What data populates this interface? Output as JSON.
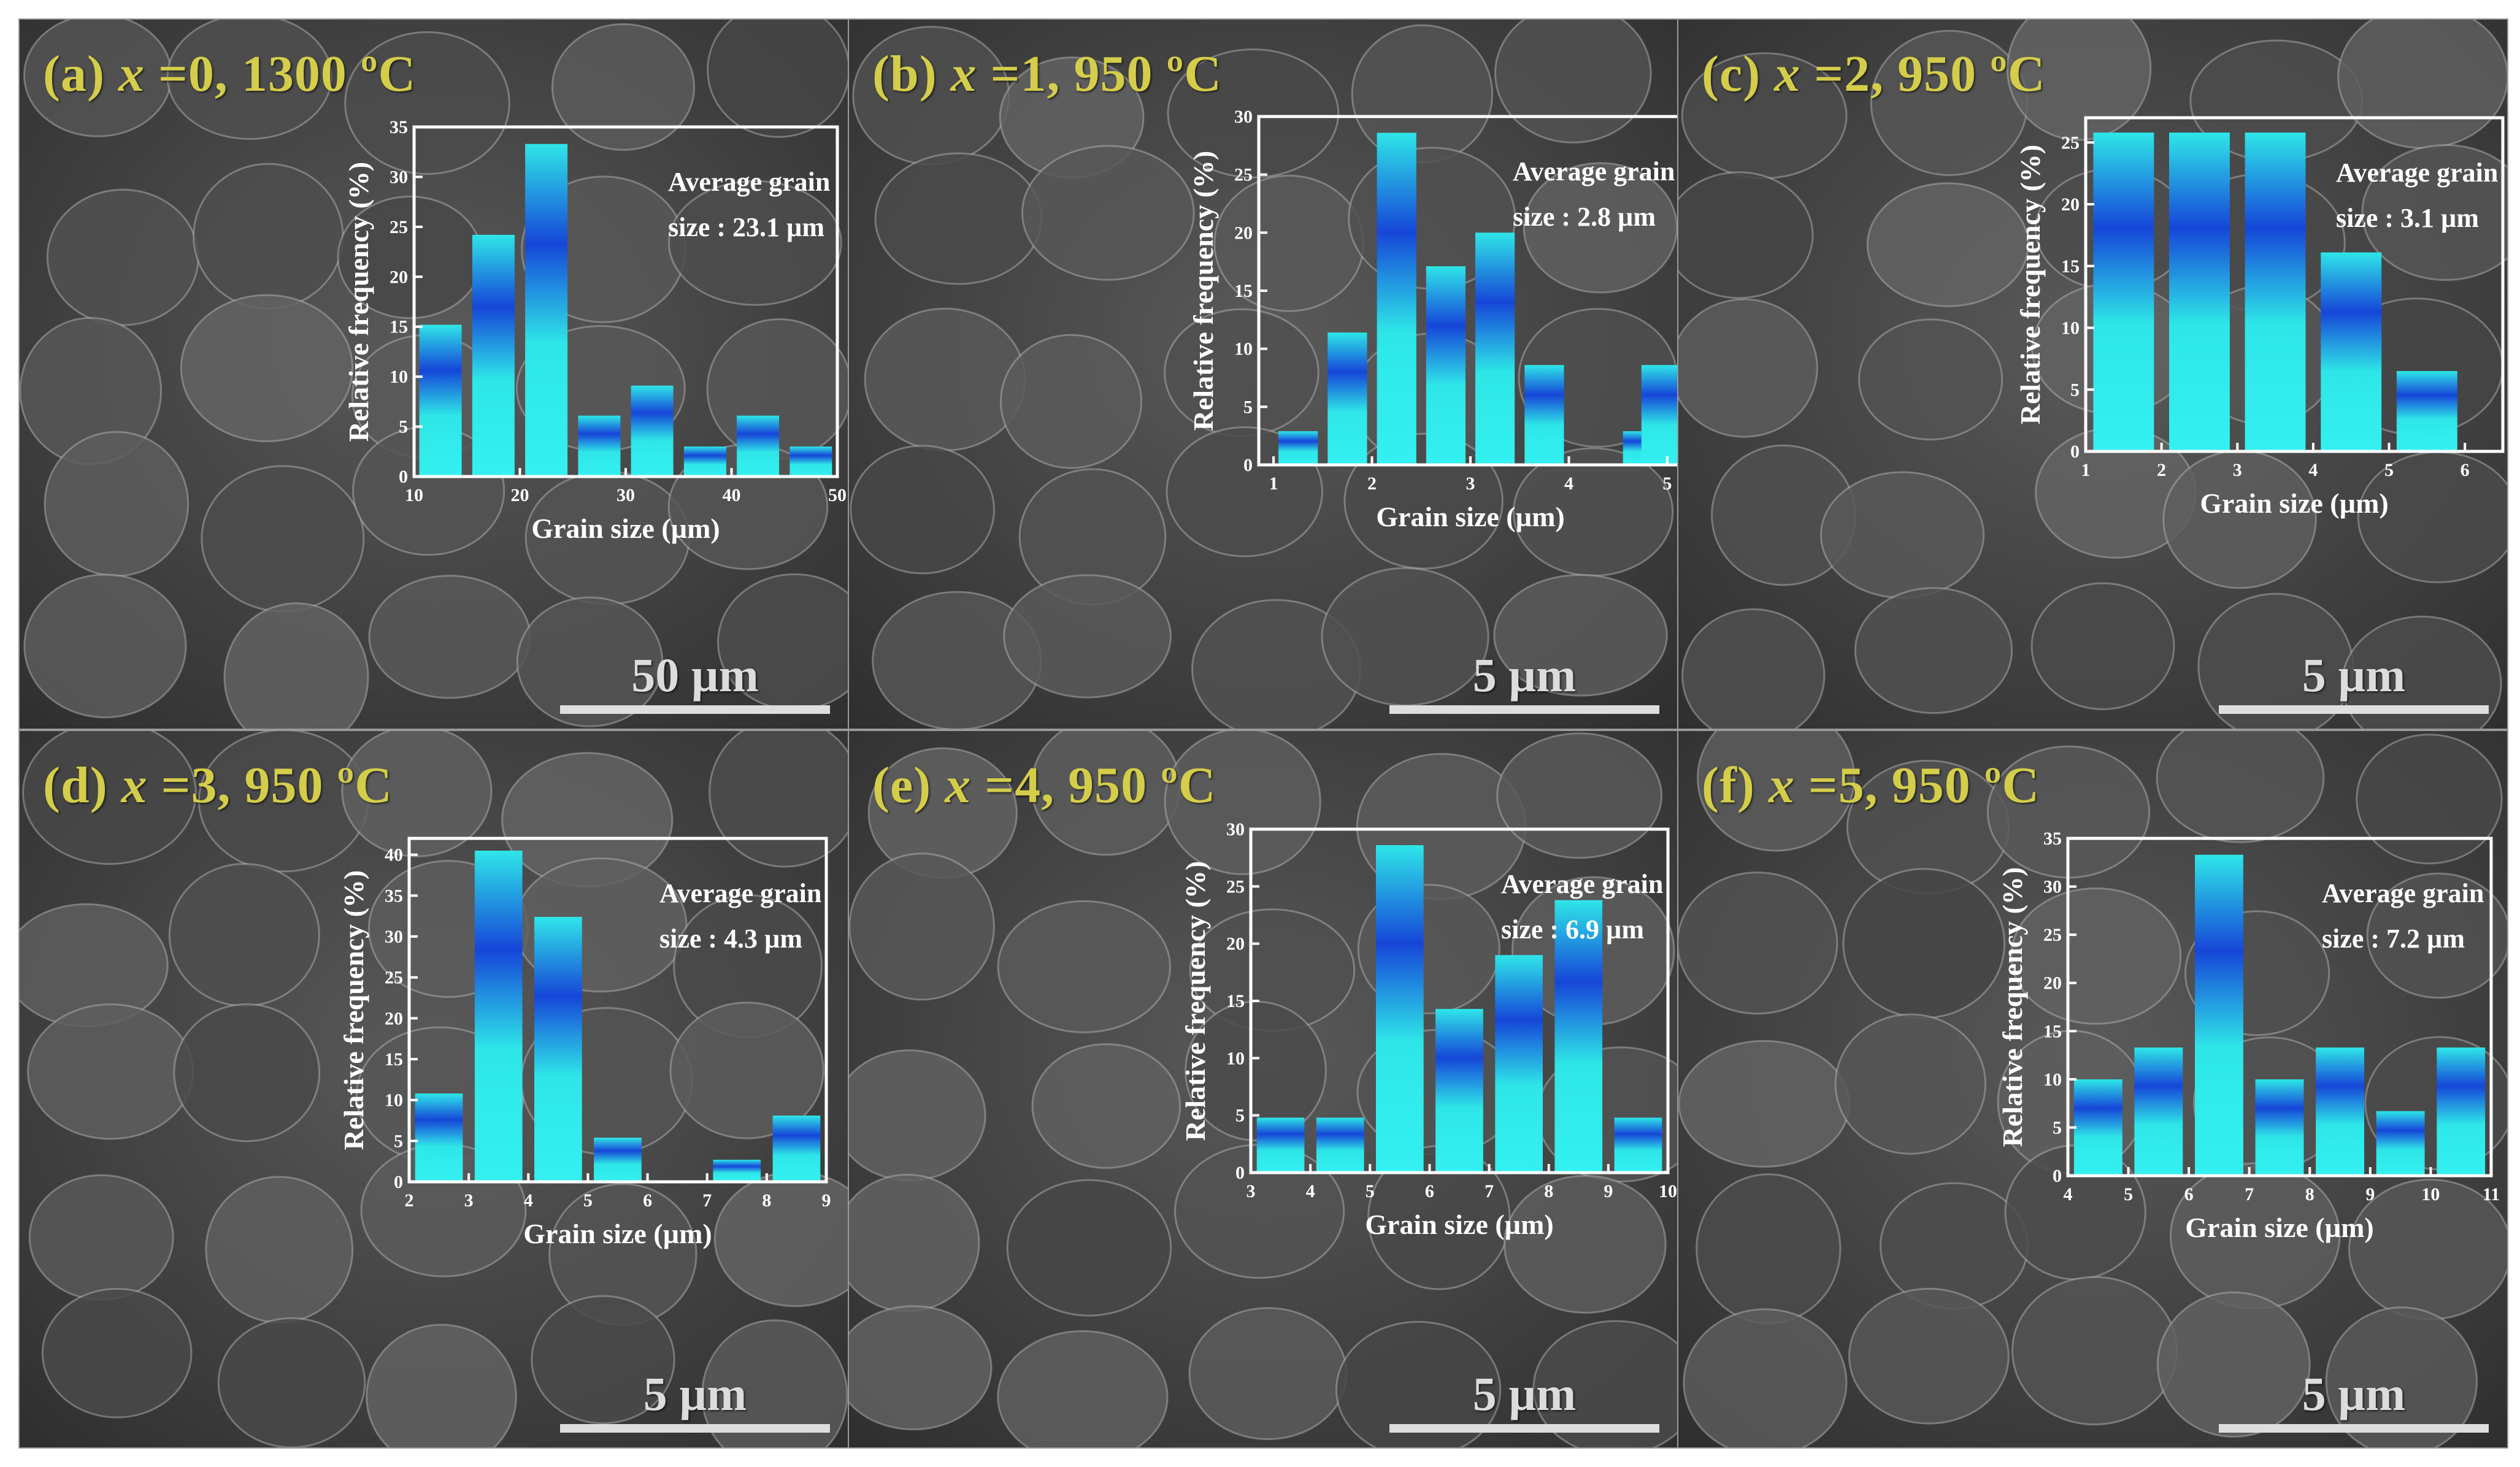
{
  "colors": {
    "label": "#d4cd4a",
    "scale": "#dedede",
    "sem_base": "#4a4a4a",
    "bar_light": "#2ee6e8",
    "bar_dark": "#1646d8",
    "axis": "#ffffff"
  },
  "chart_data": [
    {
      "id": "a",
      "type": "bar",
      "panel_label": {
        "prefix": "(a) ",
        "var": "x",
        "rest": " =0, 1300 ºC"
      },
      "scale_bar": "50 µm",
      "title": "",
      "xlabel": "Grain size (µm)",
      "ylabel": "Relative frequency (%)",
      "annotation": [
        "Average grain",
        "size : 23.1 µm"
      ],
      "xlim": [
        10,
        50
      ],
      "ylim": [
        0,
        35
      ],
      "xticks": [
        10,
        20,
        30,
        40,
        50
      ],
      "yticks": [
        0,
        5,
        10,
        15,
        20,
        25,
        30,
        35
      ],
      "bars": [
        {
          "x": 12.5,
          "value": 15.2
        },
        {
          "x": 17.5,
          "value": 24.2
        },
        {
          "x": 22.5,
          "value": 33.3
        },
        {
          "x": 27.5,
          "value": 6.1
        },
        {
          "x": 32.5,
          "value": 9.1
        },
        {
          "x": 37.5,
          "value": 3.0
        },
        {
          "x": 42.5,
          "value": 6.1
        },
        {
          "x": 47.5,
          "value": 3.0
        }
      ]
    },
    {
      "id": "b",
      "type": "bar",
      "panel_label": {
        "prefix": "(b) ",
        "var": "x",
        "rest": " =1, 950 ºC"
      },
      "scale_bar": "5 µm",
      "title": "",
      "xlabel": "Grain size (µm)",
      "ylabel": "Relative frequency (%)",
      "annotation": [
        "Average grain",
        "size : 2.8 µm"
      ],
      "xlim": [
        0.85,
        5.15
      ],
      "ylim": [
        0,
        30
      ],
      "xticks": [
        1,
        2,
        3,
        4,
        5
      ],
      "yticks": [
        0,
        5,
        10,
        15,
        20,
        25,
        30
      ],
      "bars": [
        {
          "x": 1.25,
          "value": 2.9
        },
        {
          "x": 1.75,
          "value": 11.4
        },
        {
          "x": 2.25,
          "value": 28.6
        },
        {
          "x": 2.75,
          "value": 17.1
        },
        {
          "x": 3.25,
          "value": 20.0
        },
        {
          "x": 3.75,
          "value": 8.6
        },
        {
          "x": 4.75,
          "value": 2.9
        },
        {
          "x": 5.1,
          "value": 8.6
        }
      ]
    },
    {
      "id": "c",
      "type": "bar",
      "panel_label": {
        "prefix": "(c) ",
        "var": "x",
        "rest": " =2, 950 ºC"
      },
      "scale_bar": "5 µm",
      "title": "",
      "xlabel": "Grain size (µm)",
      "ylabel": "Relative frequency (%)",
      "annotation": [
        "Average grain",
        "size : 3.1 µm"
      ],
      "xlim": [
        1,
        6.5
      ],
      "ylim": [
        0,
        27
      ],
      "xticks": [
        1,
        2,
        3,
        4,
        5,
        6
      ],
      "yticks": [
        0,
        5,
        10,
        15,
        20,
        25
      ],
      "bars": [
        {
          "x": 1.5,
          "value": 25.8
        },
        {
          "x": 2.5,
          "value": 25.8
        },
        {
          "x": 3.5,
          "value": 25.8
        },
        {
          "x": 4.5,
          "value": 16.1
        },
        {
          "x": 5.5,
          "value": 6.5
        }
      ]
    },
    {
      "id": "d",
      "type": "bar",
      "panel_label": {
        "prefix": "(d) ",
        "var": "x",
        "rest": " =3, 950 ºC"
      },
      "scale_bar": "5 µm",
      "title": "",
      "xlabel": "Grain size (µm)",
      "ylabel": "Relative frequency (%)",
      "annotation": [
        "Average grain",
        "size : 4.3 µm"
      ],
      "xlim": [
        2,
        9
      ],
      "ylim": [
        0,
        42
      ],
      "xticks": [
        2,
        3,
        4,
        5,
        6,
        7,
        8,
        9
      ],
      "yticks": [
        0,
        5,
        10,
        15,
        20,
        25,
        30,
        35,
        40
      ],
      "bars": [
        {
          "x": 2.5,
          "value": 10.8
        },
        {
          "x": 3.5,
          "value": 40.5
        },
        {
          "x": 4.5,
          "value": 32.4
        },
        {
          "x": 5.5,
          "value": 5.4
        },
        {
          "x": 7.5,
          "value": 2.7
        },
        {
          "x": 8.5,
          "value": 8.1
        }
      ]
    },
    {
      "id": "e",
      "type": "bar",
      "panel_label": {
        "prefix": "(e) ",
        "var": "x",
        "rest": " =4, 950 ºC"
      },
      "scale_bar": "5 µm",
      "title": "",
      "xlabel": "Grain size (µm)",
      "ylabel": "Relative frequency (%)",
      "annotation": [
        "Average grain",
        "size : 6.9 µm"
      ],
      "xlim": [
        3,
        10
      ],
      "ylim": [
        0,
        30
      ],
      "xticks": [
        3,
        4,
        5,
        6,
        7,
        8,
        9,
        10
      ],
      "yticks": [
        0,
        5,
        10,
        15,
        20,
        25,
        30
      ],
      "bars": [
        {
          "x": 3.5,
          "value": 4.8
        },
        {
          "x": 4.5,
          "value": 4.8
        },
        {
          "x": 5.5,
          "value": 28.6
        },
        {
          "x": 6.5,
          "value": 14.3
        },
        {
          "x": 7.5,
          "value": 19.0
        },
        {
          "x": 8.5,
          "value": 23.8
        },
        {
          "x": 9.5,
          "value": 4.8
        }
      ]
    },
    {
      "id": "f",
      "type": "bar",
      "panel_label": {
        "prefix": "(f) ",
        "var": "x",
        "rest": " =5, 950 ºC"
      },
      "scale_bar": "5 µm",
      "title": "",
      "xlabel": "Grain size (µm)",
      "ylabel": "Relative frequency (%)",
      "annotation": [
        "Average grain",
        "size : 7.2 µm"
      ],
      "xlim": [
        4,
        11
      ],
      "ylim": [
        0,
        35
      ],
      "xticks": [
        4,
        5,
        6,
        7,
        8,
        9,
        10,
        11
      ],
      "yticks": [
        0,
        5,
        10,
        15,
        20,
        25,
        30,
        35
      ],
      "bars": [
        {
          "x": 4.5,
          "value": 10.0
        },
        {
          "x": 5.5,
          "value": 13.3
        },
        {
          "x": 6.5,
          "value": 33.3
        },
        {
          "x": 7.5,
          "value": 10.0
        },
        {
          "x": 8.5,
          "value": 13.3
        },
        {
          "x": 9.5,
          "value": 6.7
        },
        {
          "x": 10.5,
          "value": 13.3
        }
      ]
    }
  ]
}
